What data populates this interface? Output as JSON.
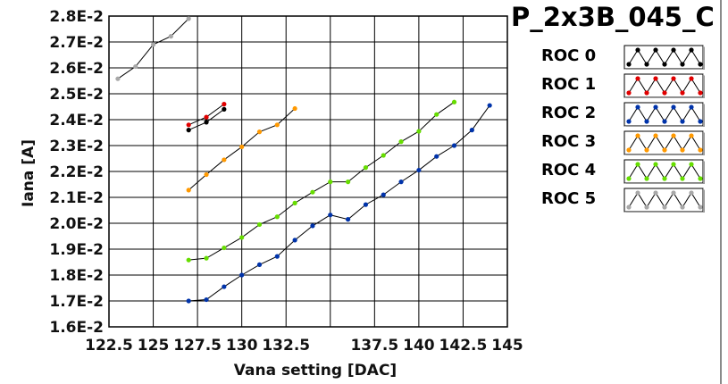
{
  "chart_data": {
    "type": "line",
    "title": "P_2x3B_045_C",
    "xlabel": "Vana setting [DAC]",
    "ylabel": "Iana [A]",
    "xlim": [
      122.5,
      145
    ],
    "ylim": [
      0.016,
      0.028
    ],
    "x_tick_labels": [
      "122.5",
      "125",
      "127.5",
      "130",
      "132.5",
      "137.5",
      "140",
      "142.5",
      "145"
    ],
    "x_tick_values": [
      122.5,
      125,
      127.5,
      130,
      132.5,
      137.5,
      140,
      142.5,
      145
    ],
    "y_tick_labels": [
      "1.6E-2",
      "1.7E-2",
      "1.8E-2",
      "1.9E-2",
      "2.0E-2",
      "2.1E-2",
      "2.2E-2",
      "2.3E-2",
      "2.4E-2",
      "2.5E-2",
      "2.6E-2",
      "2.7E-2",
      "2.8E-2"
    ],
    "y_tick_values": [
      0.016,
      0.017,
      0.018,
      0.019,
      0.02,
      0.021,
      0.022,
      0.023,
      0.024,
      0.025,
      0.026,
      0.027,
      0.028
    ],
    "grid": true,
    "legend_position": "right",
    "series": [
      {
        "name": "ROC 0",
        "color": "#000000",
        "x": [
          127,
          128,
          129
        ],
        "y": [
          0.0236,
          0.0239,
          0.0244
        ]
      },
      {
        "name": "ROC 1",
        "color": "#e00000",
        "x": [
          127,
          128,
          129
        ],
        "y": [
          0.0238,
          0.0241,
          0.0246
        ]
      },
      {
        "name": "ROC 2",
        "color": "#0033aa",
        "x": [
          127,
          128,
          129,
          130,
          131,
          132,
          133,
          134,
          135,
          136,
          137,
          138,
          139,
          140,
          141,
          142,
          143,
          144
        ],
        "y": [
          0.017,
          0.01705,
          0.01755,
          0.018,
          0.0184,
          0.01872,
          0.01935,
          0.0199,
          0.02032,
          0.02015,
          0.02072,
          0.0211,
          0.0216,
          0.02205,
          0.02258,
          0.023,
          0.0236,
          0.02455
        ]
      },
      {
        "name": "ROC 3",
        "color": "#ff9900",
        "x": [
          127,
          128,
          129,
          130,
          131,
          132,
          133
        ],
        "y": [
          0.02128,
          0.02188,
          0.02245,
          0.02295,
          0.02353,
          0.0238,
          0.02443
        ]
      },
      {
        "name": "ROC 4",
        "color": "#66dd00",
        "x": [
          127,
          128,
          129,
          130,
          131,
          132,
          133,
          134,
          135,
          136,
          137,
          138,
          139,
          140,
          141,
          142
        ],
        "y": [
          0.01858,
          0.01865,
          0.01905,
          0.01945,
          0.01995,
          0.02025,
          0.02078,
          0.0212,
          0.0216,
          0.0216,
          0.02215,
          0.02262,
          0.02315,
          0.02355,
          0.0242,
          0.02468
        ]
      },
      {
        "name": "ROC 5",
        "color": "#a8a8a8",
        "x": [
          123,
          124,
          125,
          126,
          127
        ],
        "y": [
          0.02558,
          0.02605,
          0.0269,
          0.02722,
          0.0279
        ]
      }
    ]
  }
}
